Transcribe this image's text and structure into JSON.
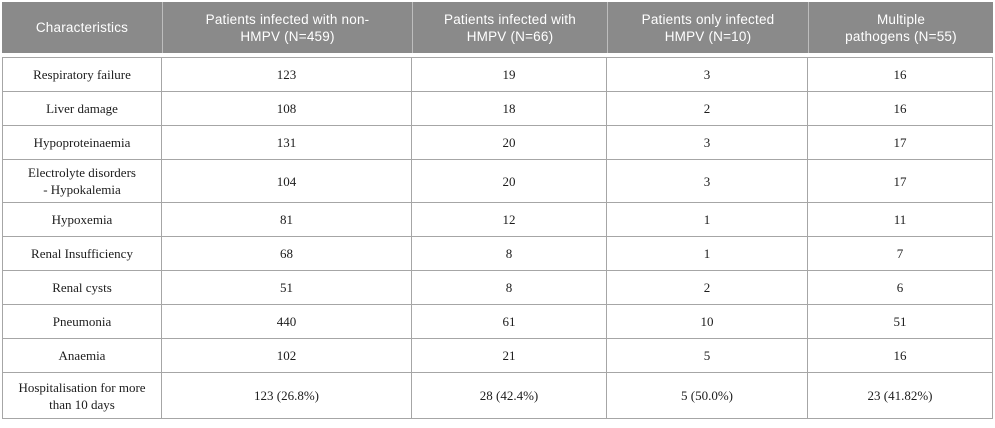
{
  "colors": {
    "header_bg": "#8a8a8a",
    "header_text": "#ffffff",
    "grid_border": "#a6a6a6",
    "body_text": "#1c1c1c"
  },
  "table": {
    "columns": [
      {
        "label": "Characteristics"
      },
      {
        "label": "Patients infected with non-\nHMPV (N=459)"
      },
      {
        "label": "Patients infected with\nHMPV (N=66)"
      },
      {
        "label": "Patients only infected\nHMPV (N=10)"
      },
      {
        "label": "Multiple\npathogens (N=55)"
      }
    ],
    "rows": [
      {
        "cells": [
          "Respiratory failure",
          "123",
          "19",
          "3",
          "16"
        ]
      },
      {
        "cells": [
          "Liver damage",
          "108",
          "18",
          "2",
          "16"
        ]
      },
      {
        "cells": [
          "Hypoproteinaemia",
          "131",
          "20",
          "3",
          "17"
        ]
      },
      {
        "cells": [
          "Electrolyte disorders\n- Hypokalemia",
          "104",
          "20",
          "3",
          "17"
        ]
      },
      {
        "cells": [
          "Hypoxemia",
          "81",
          "12",
          "1",
          "11"
        ]
      },
      {
        "cells": [
          "Renal Insufficiency",
          "68",
          "8",
          "1",
          "7"
        ]
      },
      {
        "cells": [
          "Renal cysts",
          "51",
          "8",
          "2",
          "6"
        ]
      },
      {
        "cells": [
          "Pneumonia",
          "440",
          "61",
          "10",
          "51"
        ]
      },
      {
        "cells": [
          "Anaemia",
          "102",
          "21",
          "5",
          "16"
        ]
      },
      {
        "cells": [
          "Hospitalisation for more\nthan 10 days",
          "123 (26.8%)",
          "28 (42.4%)",
          "5 (50.0%)",
          "23 (41.82%)"
        ]
      }
    ]
  }
}
